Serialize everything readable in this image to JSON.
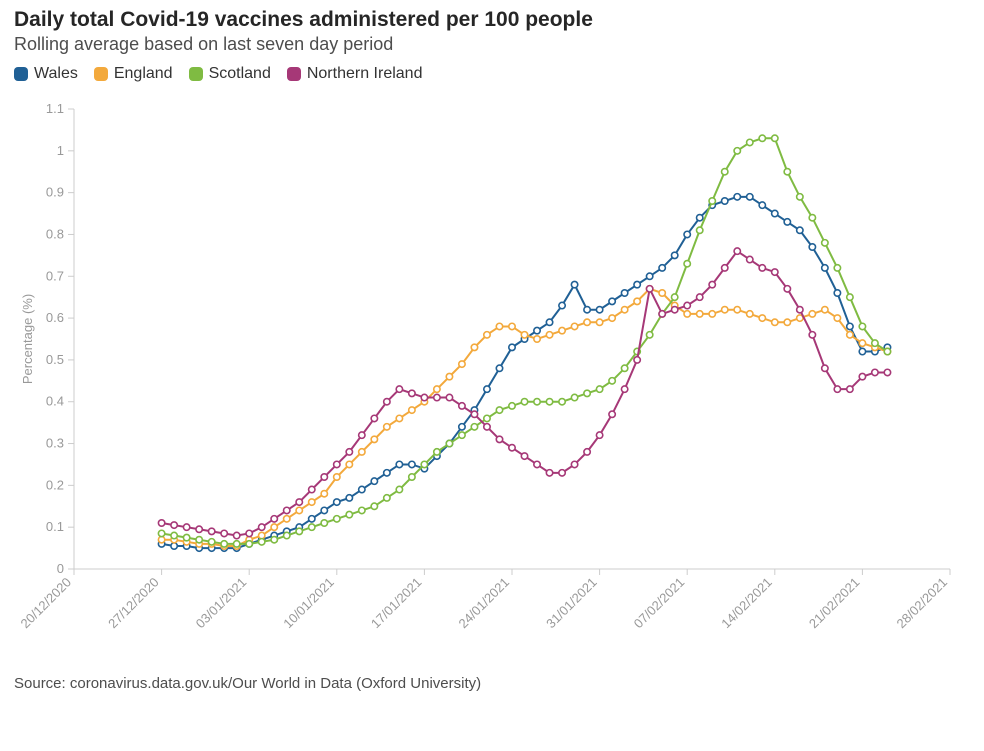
{
  "title": "Daily total Covid-19 vaccines administered per 100 people",
  "subtitle": "Rolling average based on last seven day period",
  "source": "Source: coronavirus.data.gov.uk/Our World in Data (Oxford University)",
  "chart": {
    "type": "line",
    "background_color": "#ffffff",
    "grid_color": "#cccccc",
    "axis_label_color": "#999999",
    "title_fontsize": 21,
    "subtitle_fontsize": 18,
    "axis_fontsize": 13,
    "line_width": 2,
    "marker_radius": 3.2,
    "marker_style": "open-circle",
    "y_axis": {
      "title": "Percentage (%)",
      "lim": [
        0,
        1.1
      ],
      "tick_step": 0.1,
      "ticks": [
        0,
        0.1,
        0.2,
        0.3,
        0.4,
        0.5,
        0.6,
        0.7,
        0.8,
        0.9,
        1,
        1.1
      ]
    },
    "x_axis": {
      "tick_labels": [
        "20/12/2020",
        "27/12/2020",
        "03/01/2021",
        "10/01/2021",
        "17/01/2021",
        "24/01/2021",
        "31/01/2021",
        "07/02/2021",
        "14/02/2021",
        "21/02/2021",
        "28/02/2021"
      ],
      "tick_day_index": [
        -7,
        0,
        7,
        14,
        21,
        28,
        35,
        42,
        49,
        56,
        63
      ],
      "label_rotation": -45
    },
    "day_index_range": [
      0,
      58
    ],
    "series": [
      {
        "name": "Wales",
        "color": "#206095",
        "values": [
          0.06,
          0.055,
          0.055,
          0.05,
          0.05,
          0.05,
          0.05,
          0.06,
          0.07,
          0.08,
          0.09,
          0.1,
          0.12,
          0.14,
          0.16,
          0.17,
          0.19,
          0.21,
          0.23,
          0.25,
          0.25,
          0.24,
          0.27,
          0.3,
          0.34,
          0.38,
          0.43,
          0.48,
          0.53,
          0.55,
          0.57,
          0.59,
          0.63,
          0.68,
          0.62,
          0.62,
          0.64,
          0.66,
          0.68,
          0.7,
          0.72,
          0.75,
          0.8,
          0.84,
          0.87,
          0.88,
          0.89,
          0.89,
          0.87,
          0.85,
          0.83,
          0.81,
          0.77,
          0.72,
          0.66,
          0.58,
          0.52,
          0.52,
          0.53
        ]
      },
      {
        "name": "England",
        "color": "#f3a93c",
        "values": [
          0.07,
          0.07,
          0.065,
          0.06,
          0.06,
          0.055,
          0.055,
          0.07,
          0.08,
          0.1,
          0.12,
          0.14,
          0.16,
          0.18,
          0.22,
          0.25,
          0.28,
          0.31,
          0.34,
          0.36,
          0.38,
          0.4,
          0.43,
          0.46,
          0.49,
          0.53,
          0.56,
          0.58,
          0.58,
          0.56,
          0.55,
          0.56,
          0.57,
          0.58,
          0.59,
          0.59,
          0.6,
          0.62,
          0.64,
          0.67,
          0.66,
          0.63,
          0.61,
          0.61,
          0.61,
          0.62,
          0.62,
          0.61,
          0.6,
          0.59,
          0.59,
          0.6,
          0.61,
          0.62,
          0.6,
          0.56,
          0.54,
          0.53,
          0.52
        ]
      },
      {
        "name": "Scotland",
        "color": "#7fbb42",
        "values": [
          0.085,
          0.08,
          0.075,
          0.07,
          0.065,
          0.06,
          0.06,
          0.06,
          0.065,
          0.07,
          0.08,
          0.09,
          0.1,
          0.11,
          0.12,
          0.13,
          0.14,
          0.15,
          0.17,
          0.19,
          0.22,
          0.25,
          0.28,
          0.3,
          0.32,
          0.34,
          0.36,
          0.38,
          0.39,
          0.4,
          0.4,
          0.4,
          0.4,
          0.41,
          0.42,
          0.43,
          0.45,
          0.48,
          0.52,
          0.56,
          0.61,
          0.65,
          0.73,
          0.81,
          0.88,
          0.95,
          1.0,
          1.02,
          1.03,
          1.03,
          0.95,
          0.89,
          0.84,
          0.78,
          0.72,
          0.65,
          0.58,
          0.54,
          0.52
        ]
      },
      {
        "name": "Northern Ireland",
        "color": "#a63877",
        "values": [
          0.11,
          0.105,
          0.1,
          0.095,
          0.09,
          0.085,
          0.08,
          0.085,
          0.1,
          0.12,
          0.14,
          0.16,
          0.19,
          0.22,
          0.25,
          0.28,
          0.32,
          0.36,
          0.4,
          0.43,
          0.42,
          0.41,
          0.41,
          0.41,
          0.39,
          0.37,
          0.34,
          0.31,
          0.29,
          0.27,
          0.25,
          0.23,
          0.23,
          0.25,
          0.28,
          0.32,
          0.37,
          0.43,
          0.5,
          0.67,
          0.61,
          0.62,
          0.63,
          0.65,
          0.68,
          0.72,
          0.76,
          0.74,
          0.72,
          0.71,
          0.67,
          0.62,
          0.56,
          0.48,
          0.43,
          0.43,
          0.46,
          0.47,
          0.47
        ]
      }
    ]
  }
}
